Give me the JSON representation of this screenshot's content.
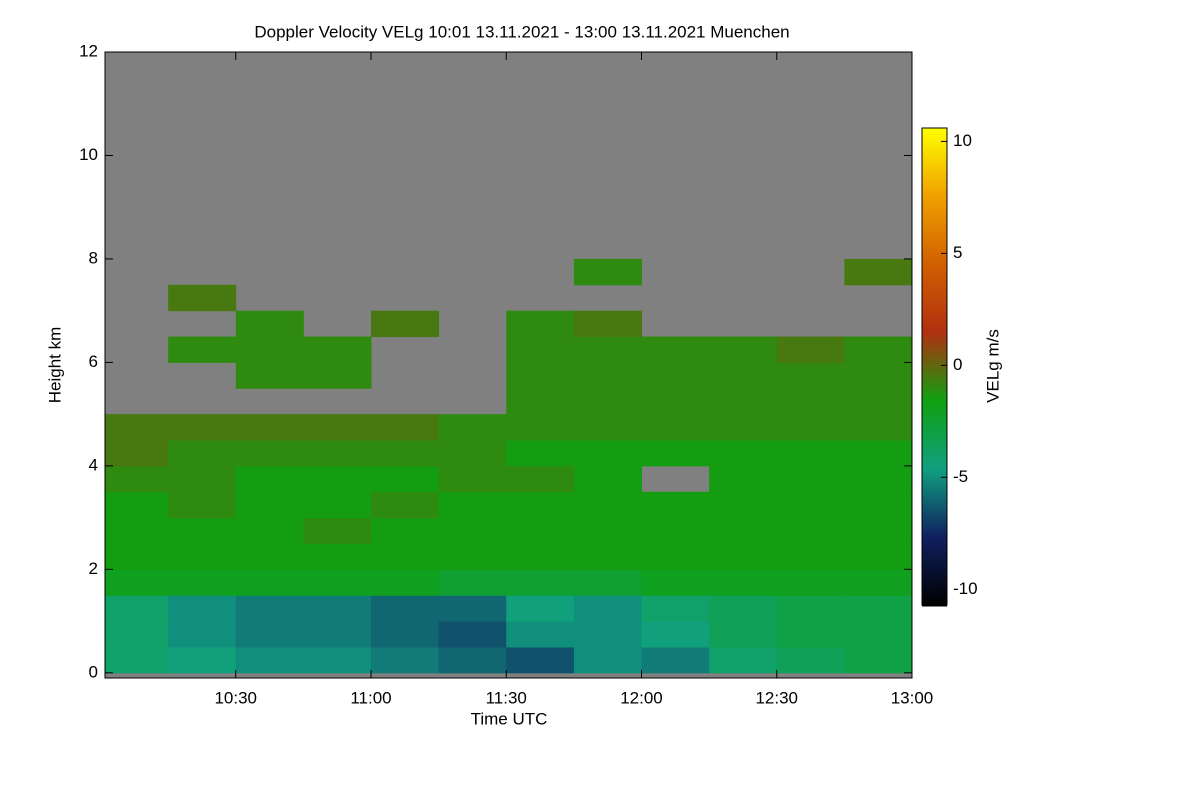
{
  "chart_data": {
    "type": "heatmap",
    "title": "Doppler Velocity VELg   10:01 13.11.2021 - 13:00 13.11.2021 Muenchen",
    "xlabel": "Time UTC",
    "ylabel": "Height km",
    "colorbar_label": "VELg m/s",
    "xlim": [
      601,
      780
    ],
    "xticks": [
      {
        "value": 630,
        "label": "10:30"
      },
      {
        "value": 660,
        "label": "11:00"
      },
      {
        "value": 690,
        "label": "11:30"
      },
      {
        "value": 720,
        "label": "12:00"
      },
      {
        "value": 750,
        "label": "12:30"
      },
      {
        "value": 780,
        "label": "13:00"
      }
    ],
    "ylim": [
      -0.1,
      12
    ],
    "yticks": [
      0,
      2,
      4,
      6,
      8,
      10,
      12
    ],
    "clim": [
      -10.7,
      10.6
    ],
    "cticks": [
      10,
      5,
      0,
      -5,
      -10
    ],
    "colormap": [
      "#000000",
      "#102060",
      "#10a080",
      "#10a010",
      "#b03010",
      "#d06000",
      "#f0a000",
      "#ffff00"
    ],
    "nodata_color": "#808080",
    "x_bins": [
      601,
      615,
      630,
      645,
      660,
      675,
      690,
      705,
      720,
      735,
      750,
      765,
      780
    ],
    "y_bins": [
      0,
      0.5,
      1,
      1.5,
      2,
      2.5,
      3,
      3.5,
      4,
      4.5,
      5,
      5.5,
      6,
      6.5,
      7,
      7.5,
      8
    ],
    "z": [
      [
        -4,
        -4.5,
        -5,
        -5,
        -5.5,
        -6,
        -6.5,
        -5,
        -5.5,
        -4,
        -3.5,
        -3
      ],
      [
        -4,
        -5,
        -5.5,
        -5.5,
        -6,
        -6.5,
        -5,
        -5,
        -4.5,
        -3.5,
        -3,
        -3
      ],
      [
        -4,
        -5,
        -5.5,
        -5.5,
        -6,
        -6,
        -4.5,
        -5,
        -4,
        -3.5,
        -3,
        -3
      ],
      [
        -2,
        -2,
        -2,
        -2,
        -2,
        -2.5,
        -2.5,
        -2.5,
        -2,
        -2,
        -2,
        -2
      ],
      [
        -1.5,
        -1.5,
        -1.5,
        -1.5,
        -1.5,
        -1.5,
        -1.5,
        -1.5,
        -1.5,
        -1.5,
        -1.5,
        -1.5
      ],
      [
        -1.5,
        -1.5,
        -1.5,
        -1,
        -1.5,
        -1.5,
        -1.5,
        -1.5,
        -1.5,
        -1.5,
        -1.5,
        -1.5
      ],
      [
        -1.5,
        -1,
        -1.5,
        -1.5,
        -1,
        -1.5,
        -1.5,
        -1.5,
        -1.5,
        -1.5,
        -1.5,
        -1.5
      ],
      [
        -1,
        -1,
        -1.5,
        -1.5,
        -1.5,
        -1,
        -1,
        -1.5,
        null,
        -1.5,
        -1.5,
        -1.5
      ],
      [
        -0.5,
        -1,
        -1,
        -1,
        -1,
        -1,
        -1.5,
        -1.5,
        -1.5,
        -1.5,
        -1.5,
        -1.5
      ],
      [
        -0.5,
        -0.5,
        -0.5,
        -0.5,
        -0.5,
        -1,
        -1,
        -1,
        -1,
        -1,
        -1,
        -1
      ],
      [
        null,
        null,
        null,
        null,
        null,
        null,
        -1,
        -1,
        -1,
        -1,
        -1,
        -1
      ],
      [
        null,
        null,
        -1,
        -1,
        null,
        null,
        -1,
        -1,
        -1,
        -1,
        -1,
        -1
      ],
      [
        null,
        -1,
        -1,
        -1,
        null,
        null,
        -1,
        -1,
        -1,
        -1,
        -0.5,
        -1
      ],
      [
        null,
        null,
        -1,
        null,
        -0.5,
        null,
        -1,
        -0.5,
        null,
        null,
        null,
        null
      ],
      [
        null,
        -0.5,
        null,
        null,
        null,
        null,
        null,
        null,
        null,
        null,
        null,
        null
      ],
      [
        null,
        null,
        null,
        null,
        null,
        null,
        null,
        -1,
        null,
        null,
        null,
        -0.5
      ]
    ]
  }
}
